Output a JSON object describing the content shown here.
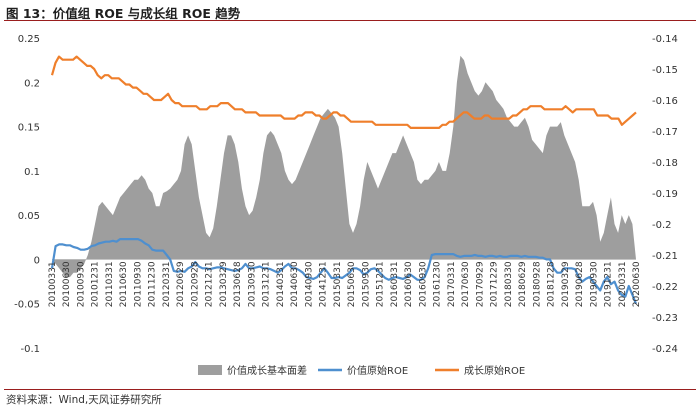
{
  "header": {
    "title": "图 13：价值组 ROE 与成长组 ROE 趋势"
  },
  "footer": {
    "source": "资料来源：Wind,天风证券研究所"
  },
  "chart_data": {
    "type": "line",
    "title": "图 13：价值组 ROE 与成长组 ROE 趋势",
    "y_left": {
      "ylim": [
        -0.1,
        0.25
      ],
      "ticks": [
        "0.25",
        "0.2",
        "0.15",
        "0.1",
        "0.05",
        "0",
        "-0.05",
        "-0.1"
      ]
    },
    "y_right": {
      "ylim": [
        -0.24,
        -0.14
      ],
      "ticks": [
        "-0.14",
        "-0.15",
        "-0.16",
        "-0.17",
        "-0.18",
        "-0.19",
        "-0.2",
        "-0.21",
        "-0.22",
        "-0.23",
        "-0.24"
      ]
    },
    "x_tick_labels": [
      "20100331",
      "20100630",
      "20100930",
      "20101231",
      "20110331",
      "20110630",
      "20110930",
      "20111230",
      "20120331",
      "20120629",
      "20120928",
      "20121231",
      "20130329",
      "20130628",
      "20130930",
      "20131231",
      "20140331",
      "20140630",
      "20140930",
      "20141231",
      "20150331",
      "20150630",
      "20150930",
      "20151231",
      "20160331",
      "20160630",
      "20160930",
      "20161230",
      "20170331",
      "20170630",
      "20170929",
      "20171229",
      "20180330",
      "20180629",
      "20180928",
      "20181228",
      "20190329",
      "20190628",
      "20190930",
      "20191231",
      "20200331",
      "20200630"
    ],
    "legend_position": "bottom",
    "series": [
      {
        "name": "价值成长基本面差",
        "type": "area",
        "axis": "left",
        "color": "#9e9e9e",
        "values": [
          0.0,
          -0.005,
          -0.01,
          -0.015,
          -0.02,
          -0.02,
          -0.015,
          -0.015,
          -0.01,
          -0.005,
          0.005,
          0.02,
          0.04,
          0.06,
          0.065,
          0.06,
          0.055,
          0.05,
          0.06,
          0.07,
          0.075,
          0.08,
          0.085,
          0.09,
          0.09,
          0.095,
          0.09,
          0.08,
          0.075,
          0.06,
          0.06,
          0.075,
          0.077,
          0.08,
          0.085,
          0.09,
          0.1,
          0.13,
          0.14,
          0.13,
          0.1,
          0.07,
          0.05,
          0.03,
          0.025,
          0.035,
          0.06,
          0.09,
          0.12,
          0.14,
          0.14,
          0.13,
          0.11,
          0.08,
          0.06,
          0.05,
          0.055,
          0.07,
          0.09,
          0.12,
          0.14,
          0.145,
          0.14,
          0.13,
          0.12,
          0.1,
          0.09,
          0.085,
          0.09,
          0.1,
          0.11,
          0.12,
          0.13,
          0.14,
          0.15,
          0.16,
          0.165,
          0.17,
          0.165,
          0.16,
          0.15,
          0.12,
          0.08,
          0.04,
          0.03,
          0.04,
          0.06,
          0.09,
          0.11,
          0.1,
          0.09,
          0.08,
          0.09,
          0.1,
          0.11,
          0.12,
          0.12,
          0.13,
          0.14,
          0.13,
          0.12,
          0.11,
          0.09,
          0.085,
          0.09,
          0.09,
          0.095,
          0.1,
          0.11,
          0.1,
          0.1,
          0.12,
          0.15,
          0.2,
          0.23,
          0.225,
          0.21,
          0.2,
          0.19,
          0.185,
          0.19,
          0.2,
          0.195,
          0.19,
          0.18,
          0.175,
          0.17,
          0.16,
          0.155,
          0.15,
          0.15,
          0.155,
          0.16,
          0.15,
          0.135,
          0.13,
          0.125,
          0.12,
          0.14,
          0.15,
          0.15,
          0.15,
          0.155,
          0.14,
          0.13,
          0.12,
          0.11,
          0.09,
          0.06,
          0.06,
          0.06,
          0.065,
          0.05,
          0.02,
          0.03,
          0.05,
          0.07,
          0.04,
          0.03,
          0.05,
          0.04,
          0.05,
          0.04,
          0.0
        ]
      },
      {
        "name": "价值原始ROE",
        "type": "line",
        "axis": "left",
        "color": "#4e8fcf",
        "values": [
          -0.01,
          0.015,
          0.017,
          0.017,
          0.016,
          0.016,
          0.014,
          0.013,
          0.011,
          0.011,
          0.012,
          0.015,
          0.016,
          0.018,
          0.019,
          0.02,
          0.02,
          0.021,
          0.02,
          0.023,
          0.023,
          0.023,
          0.023,
          0.023,
          0.023,
          0.021,
          0.018,
          0.016,
          0.011,
          0.01,
          0.01,
          0.01,
          0.005,
          0.0,
          -0.013,
          -0.014,
          -0.013,
          -0.014,
          -0.01,
          -0.008,
          -0.003,
          -0.008,
          -0.01,
          -0.01,
          -0.011,
          -0.01,
          -0.009,
          -0.009,
          -0.01,
          -0.011,
          -0.012,
          -0.013,
          -0.012,
          -0.01,
          -0.005,
          -0.01,
          -0.01,
          -0.009,
          -0.008,
          -0.01,
          -0.01,
          -0.011,
          -0.013,
          -0.015,
          -0.012,
          -0.008,
          -0.005,
          -0.01,
          -0.01,
          -0.012,
          -0.015,
          -0.02,
          -0.021,
          -0.022,
          -0.02,
          -0.015,
          -0.01,
          -0.015,
          -0.021,
          -0.021,
          -0.02,
          -0.021,
          -0.018,
          -0.015,
          -0.01,
          -0.01,
          -0.012,
          -0.017,
          -0.015,
          -0.011,
          -0.01,
          -0.013,
          -0.017,
          -0.021,
          -0.023,
          -0.021,
          -0.02,
          -0.021,
          -0.022,
          -0.02,
          -0.017,
          -0.02,
          -0.023,
          -0.023,
          -0.02,
          -0.01,
          0.005,
          0.006,
          0.006,
          0.006,
          0.006,
          0.006,
          0.006,
          0.004,
          0.003,
          0.004,
          0.004,
          0.004,
          0.005,
          0.004,
          0.004,
          0.003,
          0.004,
          0.004,
          0.003,
          0.004,
          0.003,
          0.003,
          0.004,
          0.004,
          0.004,
          0.003,
          0.004,
          0.003,
          0.003,
          0.003,
          0.002,
          0.002,
          0.0,
          0.0,
          -0.01,
          -0.015,
          -0.015,
          -0.01,
          -0.01,
          -0.01,
          -0.011,
          -0.02,
          -0.025,
          -0.022,
          -0.02,
          -0.025,
          -0.03,
          -0.035,
          -0.025,
          -0.02,
          -0.028,
          -0.025,
          -0.035,
          -0.04,
          -0.042,
          -0.03,
          -0.04,
          -0.05
        ]
      },
      {
        "name": "成长原始ROE",
        "type": "line",
        "axis": "right",
        "color": "#ef7f2b",
        "values": [
          -0.152,
          -0.148,
          -0.146,
          -0.147,
          -0.147,
          -0.147,
          -0.147,
          -0.146,
          -0.147,
          -0.148,
          -0.149,
          -0.149,
          -0.15,
          -0.152,
          -0.153,
          -0.152,
          -0.152,
          -0.153,
          -0.153,
          -0.153,
          -0.154,
          -0.155,
          -0.155,
          -0.156,
          -0.156,
          -0.157,
          -0.158,
          -0.158,
          -0.159,
          -0.16,
          -0.16,
          -0.16,
          -0.159,
          -0.158,
          -0.16,
          -0.161,
          -0.161,
          -0.162,
          -0.162,
          -0.162,
          -0.162,
          -0.162,
          -0.163,
          -0.163,
          -0.163,
          -0.162,
          -0.162,
          -0.162,
          -0.161,
          -0.161,
          -0.161,
          -0.162,
          -0.163,
          -0.163,
          -0.163,
          -0.164,
          -0.164,
          -0.164,
          -0.164,
          -0.165,
          -0.165,
          -0.165,
          -0.165,
          -0.165,
          -0.165,
          -0.165,
          -0.166,
          -0.166,
          -0.166,
          -0.166,
          -0.165,
          -0.165,
          -0.164,
          -0.164,
          -0.164,
          -0.165,
          -0.165,
          -0.166,
          -0.166,
          -0.165,
          -0.164,
          -0.164,
          -0.165,
          -0.165,
          -0.166,
          -0.167,
          -0.167,
          -0.167,
          -0.167,
          -0.167,
          -0.167,
          -0.167,
          -0.168,
          -0.168,
          -0.168,
          -0.168,
          -0.168,
          -0.168,
          -0.168,
          -0.168,
          -0.168,
          -0.168,
          -0.169,
          -0.169,
          -0.169,
          -0.169,
          -0.169,
          -0.169,
          -0.169,
          -0.169,
          -0.169,
          -0.168,
          -0.168,
          -0.167,
          -0.167,
          -0.166,
          -0.165,
          -0.164,
          -0.164,
          -0.165,
          -0.166,
          -0.166,
          -0.166,
          -0.165,
          -0.165,
          -0.166,
          -0.166,
          -0.166,
          -0.166,
          -0.166,
          -0.166,
          -0.165,
          -0.165,
          -0.164,
          -0.163,
          -0.163,
          -0.162,
          -0.162,
          -0.162,
          -0.162,
          -0.163,
          -0.163,
          -0.163,
          -0.163,
          -0.163,
          -0.163,
          -0.162,
          -0.163,
          -0.164,
          -0.163,
          -0.163,
          -0.163,
          -0.163,
          -0.163,
          -0.163,
          -0.165,
          -0.165,
          -0.165,
          -0.165,
          -0.166,
          -0.166,
          -0.166,
          -0.168,
          -0.167,
          -0.166,
          -0.165,
          -0.164
        ]
      }
    ]
  }
}
